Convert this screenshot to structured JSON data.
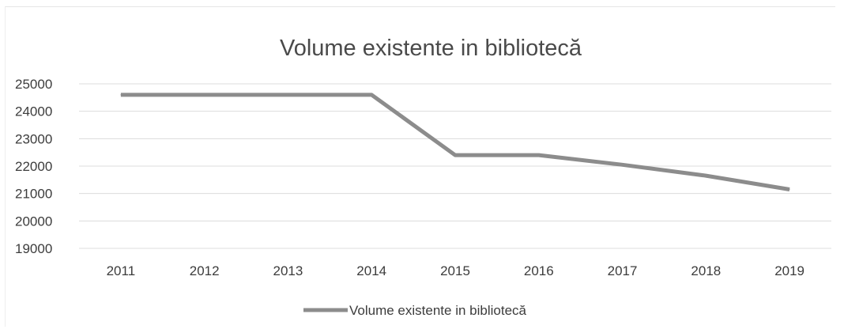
{
  "chart_data": {
    "type": "line",
    "title": "Volume existente in bibliotecă",
    "xlabel": "",
    "ylabel": "",
    "categories": [
      "2011",
      "2012",
      "2013",
      "2014",
      "2015",
      "2016",
      "2017",
      "2018",
      "2019"
    ],
    "series": [
      {
        "name": "Volume existente in bibliotecă",
        "values": [
          24600,
          24600,
          24600,
          24600,
          22400,
          22400,
          22050,
          21650,
          21150
        ],
        "color": "#8c8c8c"
      }
    ],
    "ylim": [
      19000,
      25000
    ],
    "yticks": [
      "25000",
      "24000",
      "23000",
      "22000",
      "21000",
      "20000",
      "19000"
    ],
    "grid": true,
    "legend": "bottom"
  }
}
